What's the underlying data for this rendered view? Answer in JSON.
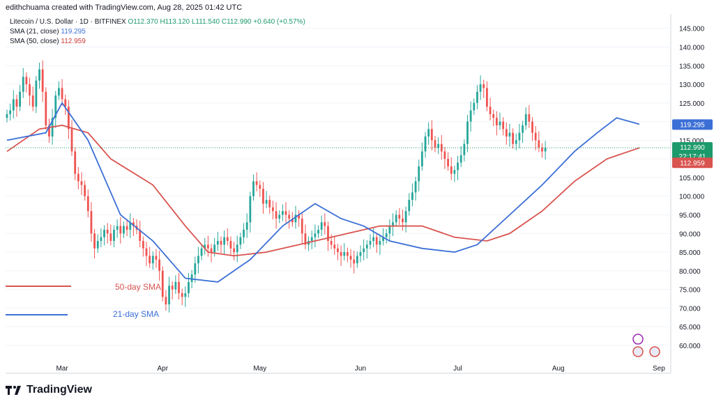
{
  "header": {
    "creator_line": "edithchuama created with TradingView.com, Aug 28, 2025 01:42 UTC"
  },
  "legend": {
    "symbol": "Litecoin / U.S. Dollar · 1D · BITFINEX",
    "ohlc": "O112.370 H113.120 L111.540 C112.990 +0.640 (+0.57%)",
    "sma21_label": "SMA (21, close)",
    "sma21_value": "119.295",
    "sma50_label": "SMA (50, close)",
    "sma50_value": "112.959"
  },
  "footer": {
    "brand": "TradingView"
  },
  "colors": {
    "up": "#26a69a",
    "down": "#ef5350",
    "sma21": "#3b6fd6",
    "sma50": "#d9534f",
    "grid": "#f0f3fa"
  },
  "chart_data": {
    "type": "candlestick",
    "title": "Litecoin / U.S. Dollar · 1D · BITFINEX",
    "ylim": [
      57,
      147
    ],
    "y_ticks": [
      60,
      65,
      70,
      75,
      80,
      85,
      90,
      95,
      100,
      105,
      110,
      115,
      120,
      125,
      130,
      135,
      140,
      145
    ],
    "y_tick_labels": [
      "60.000",
      "65.000",
      "70.000",
      "75.000",
      "80.000",
      "85.000",
      "90.000",
      "95.000",
      "100.000",
      "105.000",
      "110.000",
      "115.000",
      "120.000",
      "125.000",
      "130.000",
      "135.000",
      "140.000",
      "145.000"
    ],
    "x_labels": [
      {
        "label": "Mar",
        "day": 17
      },
      {
        "label": "Apr",
        "day": 48
      },
      {
        "label": "May",
        "day": 78
      },
      {
        "label": "Jun",
        "day": 109
      },
      {
        "label": "Jul",
        "day": 139
      },
      {
        "label": "Aug",
        "day": 170
      },
      {
        "label": "Sep",
        "day": 201
      }
    ],
    "last_day": 195,
    "price_badges": [
      {
        "label": "119.295",
        "value": 119.295,
        "color": "#3b6fd6"
      },
      {
        "label": "112.990",
        "value": 112.99,
        "color": "#1d9a6c",
        "sub": "22:17:41"
      },
      {
        "label": "112.959",
        "value": 112.959,
        "color": "#d9534f"
      }
    ],
    "closes": [
      122,
      123,
      126,
      124,
      128,
      132,
      130,
      127,
      124,
      131,
      134,
      128,
      119,
      116,
      121,
      127,
      129,
      126,
      124,
      118,
      112,
      106,
      104,
      103,
      100,
      96,
      90,
      86,
      88,
      89,
      91,
      90,
      88,
      91,
      92,
      90,
      92,
      91,
      93,
      92,
      91,
      88,
      86,
      84,
      82,
      84,
      83,
      80,
      73,
      71,
      76,
      75,
      77,
      74,
      73,
      74,
      77,
      79,
      82,
      84,
      86,
      87,
      86,
      85,
      87,
      88,
      87,
      89,
      88,
      86,
      85,
      87,
      89,
      91,
      93,
      100,
      104,
      103,
      102,
      98,
      99,
      97,
      96,
      94,
      95,
      96,
      95,
      94,
      93,
      95,
      94,
      90,
      87,
      88,
      89,
      90,
      91,
      93,
      92,
      88,
      87,
      86,
      85,
      84,
      85,
      84,
      83,
      82,
      84,
      85,
      86,
      87,
      88,
      89,
      87,
      88,
      89,
      90,
      92,
      93,
      95,
      94,
      93,
      96,
      99,
      101,
      104,
      108,
      112,
      116,
      118,
      115,
      113,
      114,
      112,
      110,
      108,
      106,
      107,
      109,
      111,
      114,
      120,
      123,
      125,
      128,
      130,
      129,
      124,
      122,
      121,
      119,
      120,
      118,
      116,
      117,
      114,
      115,
      117,
      119,
      122,
      120,
      117,
      115,
      113,
      112,
      113
    ],
    "sma21_points": [
      [
        0,
        115
      ],
      [
        12,
        117
      ],
      [
        17,
        125
      ],
      [
        25,
        115
      ],
      [
        35,
        95
      ],
      [
        45,
        88
      ],
      [
        55,
        78
      ],
      [
        65,
        77
      ],
      [
        75,
        83
      ],
      [
        85,
        92
      ],
      [
        95,
        98
      ],
      [
        103,
        94
      ],
      [
        110,
        92
      ],
      [
        118,
        88
      ],
      [
        128,
        86
      ],
      [
        138,
        85
      ],
      [
        145,
        87
      ],
      [
        155,
        95
      ],
      [
        165,
        103
      ],
      [
        175,
        112
      ],
      [
        182,
        117
      ],
      [
        188,
        121
      ],
      [
        195,
        119.3
      ]
    ],
    "sma50_points": [
      [
        0,
        112
      ],
      [
        10,
        118
      ],
      [
        17,
        119
      ],
      [
        25,
        117
      ],
      [
        32,
        110
      ],
      [
        45,
        103
      ],
      [
        55,
        92
      ],
      [
        62,
        85
      ],
      [
        70,
        84
      ],
      [
        80,
        85
      ],
      [
        95,
        88
      ],
      [
        105,
        90
      ],
      [
        115,
        92
      ],
      [
        128,
        92
      ],
      [
        138,
        89
      ],
      [
        148,
        88
      ],
      [
        155,
        90
      ],
      [
        165,
        96
      ],
      [
        175,
        104
      ],
      [
        185,
        110
      ],
      [
        195,
        112.96
      ]
    ],
    "annotations": [
      {
        "text": "50-day SMA",
        "color": "#d9534f"
      },
      {
        "text": "21-day SMA",
        "color": "#3b6fd6"
      }
    ]
  }
}
